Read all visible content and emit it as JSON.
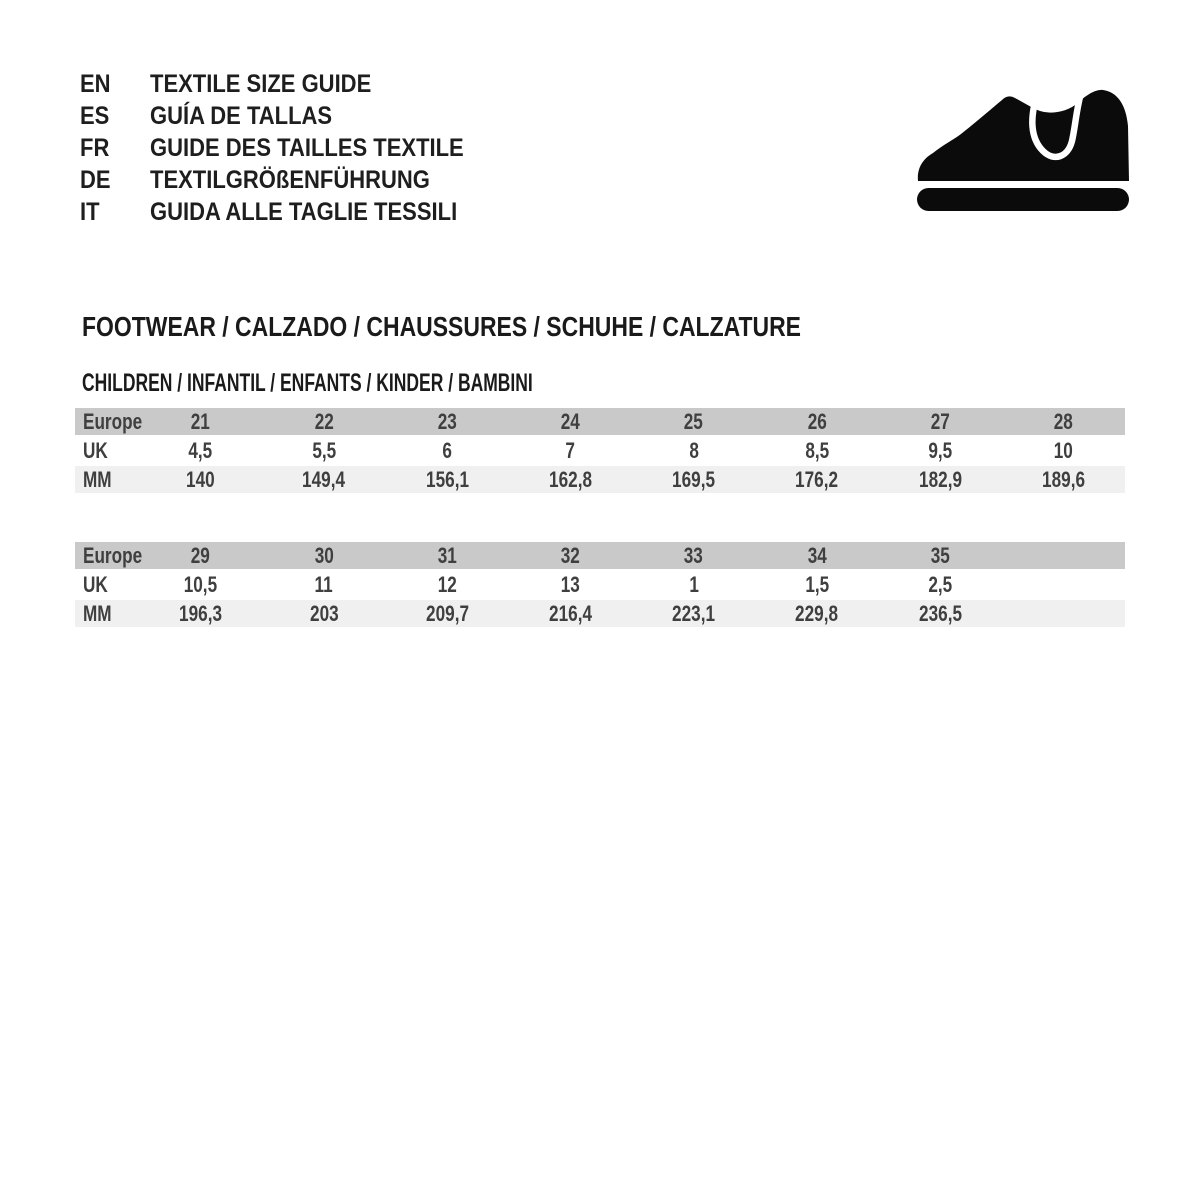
{
  "languages": [
    {
      "code": "EN",
      "title": "TEXTILE SIZE GUIDE"
    },
    {
      "code": "ES",
      "title": "GUÍA DE TALLAS"
    },
    {
      "code": "FR",
      "title": "GUIDE DES TAILLES TEXTILE"
    },
    {
      "code": "DE",
      "title": "TEXTILGRÖßENFÜHRUNG"
    },
    {
      "code": "IT",
      "title": "GUIDA ALLE TAGLIE TESSILI"
    }
  ],
  "icon": {
    "name": "children-shoe-icon",
    "color": "#0b0b0b"
  },
  "section": {
    "title": "FOOTWEAR / CALZADO / CHAUSSURES / SCHUHE / CALZATURE",
    "subtitle": "CHILDREN / INFANTIL / ENFANTS / KINDER / BAMBINI"
  },
  "tables": [
    {
      "rows": [
        {
          "label": "Europe",
          "values": [
            "21",
            "22",
            "23",
            "24",
            "25",
            "26",
            "27",
            "28"
          ]
        },
        {
          "label": "UK",
          "values": [
            "4,5",
            "5,5",
            "6",
            "7",
            "8",
            "8,5",
            "9,5",
            "10"
          ]
        },
        {
          "label": "MM",
          "values": [
            "140",
            "149,4",
            "156,1",
            "162,8",
            "169,5",
            "176,2",
            "182,9",
            "189,6"
          ]
        }
      ]
    },
    {
      "rows": [
        {
          "label": "Europe",
          "values": [
            "29",
            "30",
            "31",
            "32",
            "33",
            "34",
            "35",
            ""
          ]
        },
        {
          "label": "UK",
          "values": [
            "10,5",
            "11",
            "12",
            "13",
            "1",
            "1,5",
            "2,5",
            ""
          ]
        },
        {
          "label": "MM",
          "values": [
            "196,3",
            "203",
            "209,7",
            "216,4",
            "223,1",
            "229,8",
            "236,5",
            ""
          ]
        }
      ]
    }
  ],
  "colors": {
    "header_row_bg": "#c9c9c9",
    "white_row_bg": "#ffffff",
    "alt_row_bg": "#f0f0f0",
    "table_text": "#3f3f3f",
    "heading_text": "#1a1a1a",
    "icon": "#0b0b0b"
  }
}
